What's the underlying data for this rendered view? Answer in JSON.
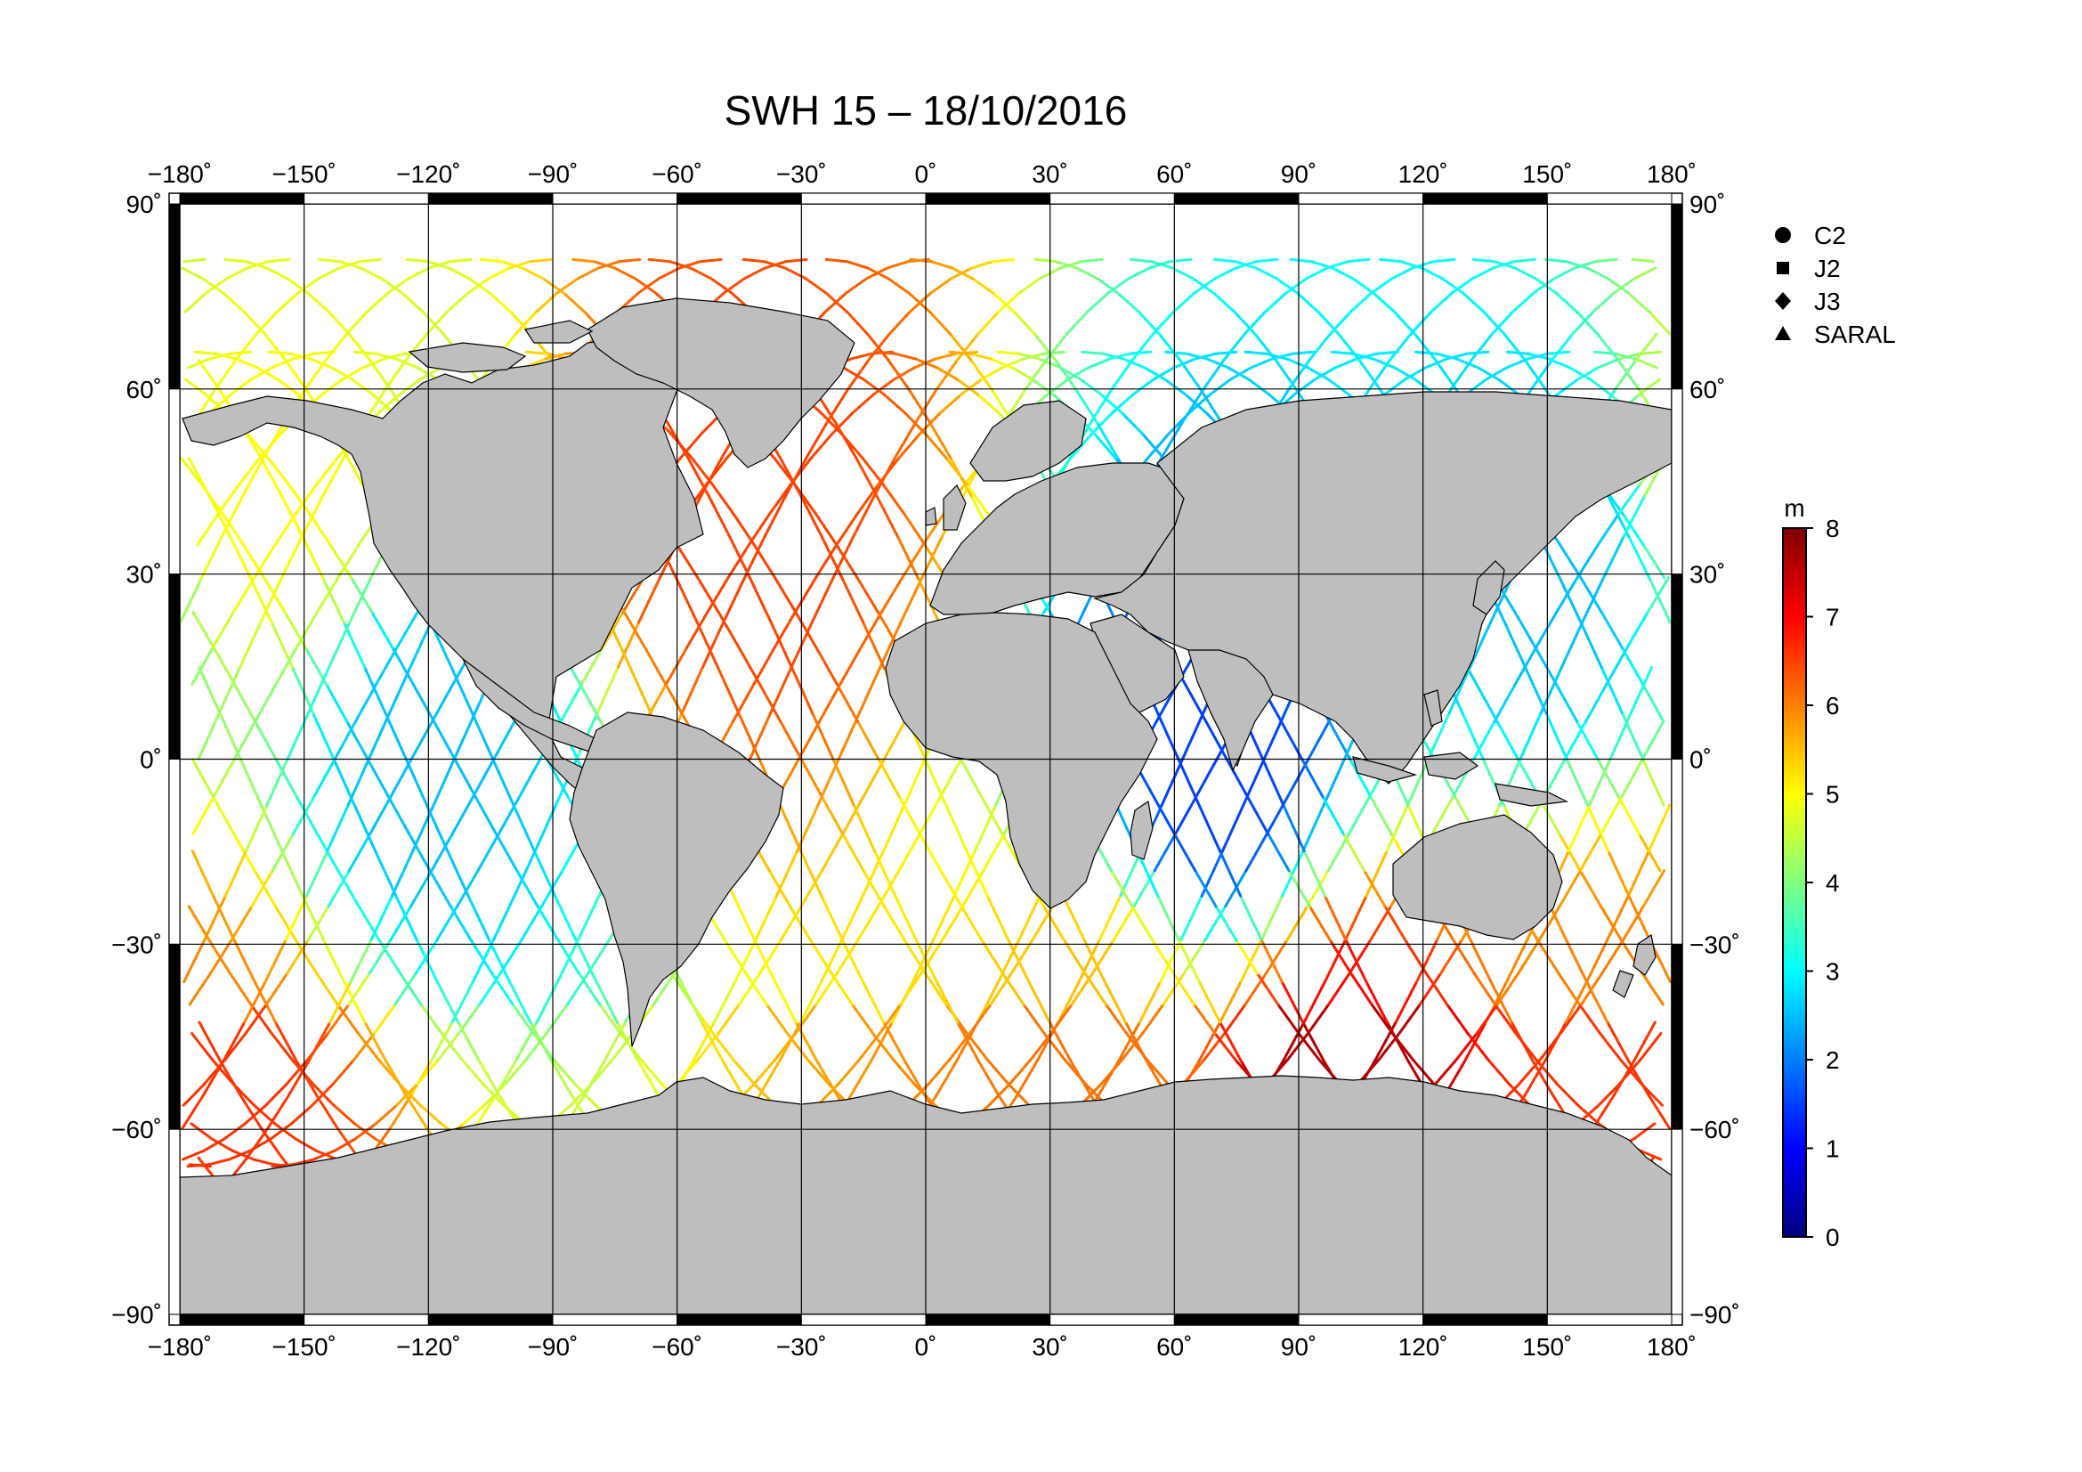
{
  "title": "SWH 15 – 18/10/2016",
  "map": {
    "projection": "equirectangular",
    "lon_range": [
      -180,
      180
    ],
    "lat_range": [
      -90,
      90
    ],
    "grid_step": 30,
    "land_color": "#bebebe",
    "ocean_color": "#ffffff",
    "frame_color": "#000000",
    "lon_ticks": [
      -180,
      -150,
      -120,
      -90,
      -60,
      -30,
      0,
      30,
      60,
      90,
      120,
      150,
      180
    ],
    "lat_ticks": [
      90,
      60,
      30,
      0,
      -30,
      -60,
      -90
    ],
    "degree_mark": "˚"
  },
  "legend": {
    "items": [
      {
        "symbol": "circle",
        "label": "C2"
      },
      {
        "symbol": "square",
        "label": "J2"
      },
      {
        "symbol": "diamond",
        "label": "J3"
      },
      {
        "symbol": "triangle",
        "label": "SARAL"
      }
    ]
  },
  "colorbar": {
    "unit": "m",
    "min": 0,
    "max": 8,
    "ticks": [
      0,
      1,
      2,
      3,
      4,
      5,
      6,
      7,
      8
    ],
    "colormap": [
      "#00007f",
      "#0000ff",
      "#007fff",
      "#00ffff",
      "#7fff7f",
      "#ffff00",
      "#ff7f00",
      "#ff0000",
      "#7f0000"
    ]
  },
  "chart_data": {
    "type": "map",
    "variable": "SWH",
    "unit": "m",
    "date": "18/10/2016",
    "value_range": [
      0,
      8
    ],
    "satellites": [
      "C2",
      "J2",
      "J3",
      "SARAL"
    ],
    "approx_regional_swh": [
      {
        "lon": -160,
        "lat": 45,
        "swh": 5.0
      },
      {
        "lon": -45,
        "lat": 42,
        "swh": 6.5
      },
      {
        "lon": -170,
        "lat": -55,
        "swh": 6.0
      },
      {
        "lon": 100,
        "lat": -50,
        "swh": 7.0
      },
      {
        "lon": 40,
        "lat": -45,
        "swh": 5.5
      },
      {
        "lon": 165,
        "lat": -45,
        "swh": 6.0
      },
      {
        "lon": -120,
        "lat": 0,
        "swh": 2.5
      },
      {
        "lon": 70,
        "lat": 0,
        "swh": 1.5
      },
      {
        "lon": 150,
        "lat": 30,
        "swh": 2.5
      }
    ]
  }
}
